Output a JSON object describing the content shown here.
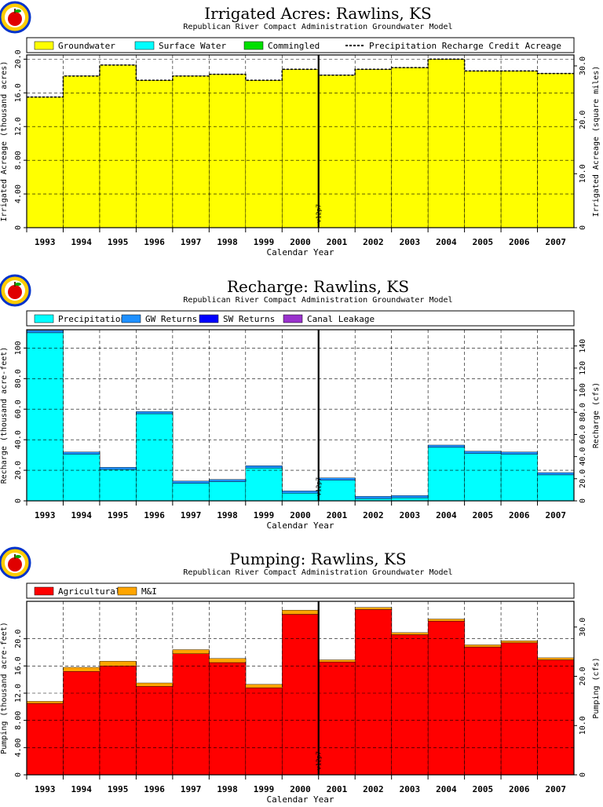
{
  "colors": {
    "groundwater": "#ffff00",
    "surface_water": "#00ffff",
    "commingled": "#00e000",
    "precipitation": "#00ffff",
    "gw_returns": "#1e90ff",
    "sw_returns": "#0000ff",
    "canal_leakage": "#9932cc",
    "agricultural": "#ff0000",
    "mi": "#ffa500",
    "grid": "#000000"
  },
  "logo": {
    "icon": "apple-logo-icon"
  },
  "version_marker": "v12p7",
  "chart_data": [
    {
      "type": "area",
      "title": "Irrigated Acres: Rawlins, KS",
      "subtitle": "Republican River Compact Administration Groundwater Model",
      "xlabel": "Calendar Year",
      "ylabel": "Irrigated Acreage (thousand acres)",
      "y2label": "Irrigated Acreage (square miles)",
      "categories": [
        "1993",
        "1994",
        "1995",
        "1996",
        "1997",
        "1998",
        "1999",
        "2000",
        "2001",
        "2002",
        "2003",
        "2004",
        "2005",
        "2006",
        "2007"
      ],
      "ylim": [
        0,
        20.5
      ],
      "yticks": [
        "0",
        "4.00",
        "8.00",
        "12.0",
        "16.0",
        "20.0"
      ],
      "yticks_values": [
        0,
        4,
        8,
        12,
        16,
        20
      ],
      "y2ticks": [
        "0",
        "10.0",
        "20.0",
        "30.0"
      ],
      "y2ticks_values": [
        0,
        10,
        20,
        30
      ],
      "y2_factor": 1.5625,
      "grid": true,
      "legend_position": "top",
      "series": [
        {
          "name": "Groundwater",
          "color_key": "groundwater",
          "values": [
            15.5,
            18.0,
            19.3,
            17.5,
            18.0,
            18.2,
            17.5,
            18.8,
            18.1,
            18.8,
            19.0,
            20.0,
            18.6,
            18.6,
            18.3
          ]
        },
        {
          "name": "Surface Water",
          "color_key": "surface_water",
          "values": [
            0,
            0,
            0,
            0,
            0,
            0,
            0,
            0,
            0,
            0,
            0,
            0,
            0,
            0,
            0
          ]
        },
        {
          "name": "Commingled",
          "color_key": "commingled",
          "values": [
            0,
            0,
            0,
            0,
            0,
            0,
            0,
            0,
            0,
            0,
            0,
            0,
            0,
            0,
            0
          ]
        }
      ],
      "line_series": {
        "name": "Precipitation Recharge Credit Acreage",
        "values": [
          15.5,
          18.0,
          19.3,
          17.5,
          18.0,
          18.2,
          17.5,
          18.8,
          18.1,
          18.8,
          19.0,
          20.0,
          18.6,
          18.6,
          18.3
        ]
      }
    },
    {
      "type": "area",
      "title": "Recharge: Rawlins, KS",
      "subtitle": "Republican River Compact Administration Groundwater Model",
      "xlabel": "Calendar Year",
      "ylabel": "Recharge (thousand acre-feet)",
      "y2label": "Recharge (cfs)",
      "categories": [
        "1993",
        "1994",
        "1995",
        "1996",
        "1997",
        "1998",
        "1999",
        "2000",
        "2001",
        "2002",
        "2003",
        "2004",
        "2005",
        "2006",
        "2007"
      ],
      "ylim": [
        0,
        112
      ],
      "yticks": [
        "0",
        "20.0",
        "40.0",
        "60.0",
        "80.0",
        "100"
      ],
      "yticks_values": [
        0,
        20,
        40,
        60,
        80,
        100
      ],
      "y2ticks": [
        "0",
        "20.0",
        "40.0",
        "60.0",
        "80.0",
        "100",
        "120",
        "140"
      ],
      "y2ticks_values": [
        0,
        20,
        40,
        60,
        80,
        100,
        120,
        140
      ],
      "y2_factor": 1.3812,
      "grid": true,
      "legend_position": "top",
      "series": [
        {
          "name": "Precipitation",
          "color_key": "precipitation",
          "values": [
            110,
            30.5,
            20.5,
            57,
            11.5,
            12.5,
            21.5,
            5,
            13.5,
            1.5,
            2,
            35,
            31,
            30.5,
            17
          ]
        },
        {
          "name": "GW Returns",
          "color_key": "gw_returns",
          "values": [
            1.5,
            1.5,
            1.5,
            1.5,
            1.5,
            1.5,
            1.5,
            1.5,
            1.5,
            1.5,
            1.5,
            1.5,
            1.5,
            1.5,
            1.5
          ]
        },
        {
          "name": "SW Returns",
          "color_key": "sw_returns",
          "values": [
            0,
            0,
            0,
            0,
            0,
            0,
            0,
            0,
            0,
            0,
            0,
            0,
            0,
            0,
            0
          ]
        },
        {
          "name": "Canal Leakage",
          "color_key": "canal_leakage",
          "values": [
            0,
            0,
            0,
            0,
            0,
            0,
            0,
            0,
            0,
            0,
            0,
            0,
            0,
            0,
            0
          ]
        }
      ]
    },
    {
      "type": "area",
      "title": "Pumping: Rawlins, KS",
      "subtitle": "Republican River Compact Administration Groundwater Model",
      "xlabel": "Calendar Year",
      "ylabel": "Pumping (thousand acre-feet)",
      "y2label": "Pumping (cfs)",
      "categories": [
        "1993",
        "1994",
        "1995",
        "1996",
        "1997",
        "1998",
        "1999",
        "2000",
        "2001",
        "2002",
        "2003",
        "2004",
        "2005",
        "2006",
        "2007"
      ],
      "ylim": [
        0,
        25.5
      ],
      "yticks": [
        "0",
        "4.00",
        "8.00",
        "12.0",
        "16.0",
        "20.0"
      ],
      "yticks_values": [
        0,
        4,
        8,
        12,
        16,
        20
      ],
      "y2ticks": [
        "0",
        "10.0",
        "20.0",
        "30.0"
      ],
      "y2ticks_values": [
        0,
        10,
        20,
        30
      ],
      "y2_factor": 1.3812,
      "grid": true,
      "legend_position": "top",
      "series": [
        {
          "name": "Agricultural",
          "color_key": "agricultural",
          "values": [
            10.5,
            15.2,
            16.0,
            13.0,
            17.8,
            16.5,
            12.8,
            23.6,
            16.6,
            24.3,
            20.6,
            22.6,
            18.8,
            19.4,
            16.9
          ]
        },
        {
          "name": "M&I",
          "color_key": "mi",
          "values": [
            0.3,
            0.6,
            0.7,
            0.5,
            0.6,
            0.6,
            0.5,
            0.6,
            0.3,
            0.3,
            0.3,
            0.3,
            0.3,
            0.3,
            0.3
          ]
        }
      ]
    }
  ]
}
